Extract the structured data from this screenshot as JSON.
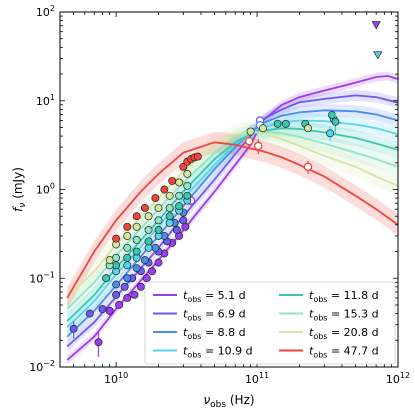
{
  "chart_data": {
    "type": "scatter",
    "x_axis": {
      "label_prefix": "ν",
      "label_sub": "obs",
      "label_suffix": " (Hz)",
      "scale": "log",
      "range": [
        4000000000,
        1000000000000
      ],
      "major_ticks": [
        {
          "value": 10000000000,
          "base": "10",
          "exp": "10"
        },
        {
          "value": 100000000000,
          "base": "10",
          "exp": "11"
        },
        {
          "value": 1000000000000,
          "base": "10",
          "exp": "12"
        }
      ]
    },
    "y_axis": {
      "label_prefix": "f",
      "label_sub": "ν",
      "label_suffix": " (mJy)",
      "scale": "log",
      "range": [
        0.01,
        100
      ],
      "major_ticks": [
        {
          "value": 0.01,
          "base": "10",
          "exp": "−2"
        },
        {
          "value": 0.1,
          "base": "10",
          "exp": "−1"
        },
        {
          "value": 1,
          "base": "10",
          "exp": "0"
        },
        {
          "value": 10,
          "base": "10",
          "exp": "1"
        },
        {
          "value": 100,
          "base": "10",
          "exp": "2"
        }
      ]
    },
    "legend": {
      "placement": "lower-right",
      "columns": 2
    },
    "series": [
      {
        "name": "5.1 d",
        "color": "#9b3df0",
        "model": [
          [
            4500000000.0,
            0.012
          ],
          [
            7000000000.0,
            0.022
          ],
          [
            10000000000.0,
            0.045
          ],
          [
            20000000000.0,
            0.16
          ],
          [
            30000000000.0,
            0.35
          ],
          [
            50000000000.0,
            0.95
          ],
          [
            70000000000.0,
            1.9
          ],
          [
            90000000000.0,
            3.2
          ],
          [
            110000000000.0,
            6.0
          ],
          [
            150000000000.0,
            9.0
          ],
          [
            200000000000.0,
            11
          ],
          [
            300000000000.0,
            13
          ],
          [
            500000000000.0,
            16
          ],
          [
            700000000000.0,
            18.5
          ],
          [
            850000000000.0,
            19
          ],
          [
            1000000000000.0,
            17.5
          ]
        ],
        "band": 0.05,
        "points": [
          [
            7500000000.0,
            0.019,
            0.006
          ],
          [
            9000000000.0,
            0.043,
            0.005
          ],
          [
            10500000000.0,
            0.05,
            0
          ],
          [
            12000000000.0,
            0.06,
            0
          ],
          [
            13500000000.0,
            0.065,
            0
          ],
          [
            15000000000.0,
            0.08,
            0
          ],
          [
            16500000000.0,
            0.1,
            0
          ],
          [
            18000000000.0,
            0.12,
            0
          ],
          [
            20000000000.0,
            0.15,
            0
          ],
          [
            22000000000.0,
            0.19,
            0
          ],
          [
            25000000000.0,
            0.25,
            0
          ],
          [
            28000000000.0,
            0.3,
            0
          ],
          [
            31000000000.0,
            0.38,
            0
          ]
        ],
        "open_points": [
          [
            34000000000.0,
            0.75,
            0.1
          ]
        ],
        "upper_limits": [
          [
            700000000000.0,
            72
          ]
        ]
      },
      {
        "name": "6.9 d",
        "color": "#6a5cf2",
        "model": [
          [
            4500000000.0,
            0.017
          ],
          [
            7000000000.0,
            0.032
          ],
          [
            10000000000.0,
            0.062
          ],
          [
            20000000000.0,
            0.22
          ],
          [
            30000000000.0,
            0.5
          ],
          [
            50000000000.0,
            1.3
          ],
          [
            70000000000.0,
            2.5
          ],
          [
            90000000000.0,
            4.0
          ],
          [
            110000000000.0,
            6.2
          ],
          [
            150000000000.0,
            8.0
          ],
          [
            200000000000.0,
            9.6
          ],
          [
            300000000000.0,
            10.5
          ],
          [
            500000000000.0,
            11.5
          ],
          [
            700000000000.0,
            11.0
          ],
          [
            1000000000000.0,
            9.5
          ]
        ],
        "band": 0.06,
        "points": [
          [
            5000000000.0,
            0.027,
            0.006
          ],
          [
            6500000000.0,
            0.04,
            0
          ],
          [
            8000000000.0,
            0.045,
            0.005
          ],
          [
            10000000000.0,
            0.065,
            0
          ],
          [
            11500000000.0,
            0.08,
            0
          ],
          [
            13000000000.0,
            0.1,
            0
          ],
          [
            15000000000.0,
            0.12,
            0
          ],
          [
            17000000000.0,
            0.15,
            0
          ],
          [
            20000000000.0,
            0.2,
            0
          ],
          [
            23000000000.0,
            0.26,
            0
          ],
          [
            27000000000.0,
            0.35,
            0
          ],
          [
            30000000000.0,
            0.45,
            0
          ]
        ],
        "open_points": [
          [
            105000000000.0,
            6.0,
            0.6
          ]
        ],
        "upper_limits": []
      },
      {
        "name": "8.8 d",
        "color": "#4b8cf0",
        "model": [
          [
            4500000000.0,
            0.022
          ],
          [
            7000000000.0,
            0.043
          ],
          [
            10000000000.0,
            0.083
          ],
          [
            20000000000.0,
            0.3
          ],
          [
            30000000000.0,
            0.65
          ],
          [
            50000000000.0,
            1.7
          ],
          [
            70000000000.0,
            3.0
          ],
          [
            90000000000.0,
            4.5
          ],
          [
            110000000000.0,
            5.6
          ],
          [
            150000000000.0,
            6.8
          ],
          [
            200000000000.0,
            7.4
          ],
          [
            300000000000.0,
            7.8
          ],
          [
            500000000000.0,
            7.6
          ],
          [
            700000000000.0,
            7.0
          ],
          [
            1000000000000.0,
            6.0
          ]
        ],
        "band": 0.07,
        "points": [
          [
            10000000000.0,
            0.085,
            0
          ],
          [
            12000000000.0,
            0.1,
            0
          ],
          [
            14000000000.0,
            0.13,
            0
          ],
          [
            16000000000.0,
            0.16,
            0
          ],
          [
            19000000000.0,
            0.22,
            0
          ],
          [
            22000000000.0,
            0.3,
            0
          ],
          [
            26000000000.0,
            0.42,
            0
          ],
          [
            30000000000.0,
            0.55,
            0
          ]
        ],
        "open_points": [
          [
            105000000000.0,
            5.3,
            0.5
          ]
        ],
        "upper_limits": []
      },
      {
        "name": "10.9 d",
        "color": "#56d6ee",
        "model": [
          [
            4500000000.0,
            0.028
          ],
          [
            7000000000.0,
            0.055
          ],
          [
            10000000000.0,
            0.11
          ],
          [
            20000000000.0,
            0.38
          ],
          [
            30000000000.0,
            0.8
          ],
          [
            50000000000.0,
            1.9
          ],
          [
            70000000000.0,
            3.2
          ],
          [
            90000000000.0,
            4.4
          ],
          [
            110000000000.0,
            5.0
          ],
          [
            150000000000.0,
            5.7
          ],
          [
            200000000000.0,
            6.0
          ],
          [
            300000000000.0,
            5.9
          ],
          [
            500000000000.0,
            5.4
          ],
          [
            700000000000.0,
            4.9
          ],
          [
            1000000000000.0,
            4.2
          ]
        ],
        "band": 0.08,
        "points": [
          [
            10000000000.0,
            0.12,
            0
          ],
          [
            12000000000.0,
            0.14,
            0
          ],
          [
            14000000000.0,
            0.17,
            0
          ],
          [
            17000000000.0,
            0.22,
            0
          ],
          [
            20000000000.0,
            0.3,
            0
          ],
          [
            24000000000.0,
            0.42,
            0
          ],
          [
            28000000000.0,
            0.58,
            0
          ],
          [
            32000000000.0,
            0.75,
            0
          ],
          [
            330000000000.0,
            4.3,
            0.8
          ],
          [
            350000000000.0,
            6.2,
            0
          ]
        ],
        "open_points": [],
        "upper_limits": [
          [
            720000000000.0,
            33
          ]
        ]
      },
      {
        "name": "11.8 d",
        "color": "#38c7b0",
        "model": [
          [
            4500000000.0,
            0.033
          ],
          [
            7000000000.0,
            0.065
          ],
          [
            10000000000.0,
            0.13
          ],
          [
            20000000000.0,
            0.45
          ],
          [
            30000000000.0,
            0.95
          ],
          [
            50000000000.0,
            2.2
          ],
          [
            70000000000.0,
            3.4
          ],
          [
            90000000000.0,
            4.2
          ],
          [
            110000000000.0,
            4.6
          ],
          [
            150000000000.0,
            4.9
          ],
          [
            200000000000.0,
            4.8
          ],
          [
            300000000000.0,
            4.4
          ],
          [
            500000000000.0,
            3.8
          ],
          [
            700000000000.0,
            3.3
          ],
          [
            1000000000000.0,
            2.8
          ]
        ],
        "band": 0.09,
        "points": [
          [
            8500000000.0,
            0.1,
            0
          ],
          [
            10000000000.0,
            0.14,
            0
          ],
          [
            12000000000.0,
            0.17,
            0
          ],
          [
            14000000000.0,
            0.2,
            0
          ],
          [
            17000000000.0,
            0.26,
            0
          ],
          [
            20000000000.0,
            0.35,
            0
          ],
          [
            24000000000.0,
            0.5,
            0
          ],
          [
            28000000000.0,
            0.65,
            0
          ],
          [
            32000000000.0,
            0.85,
            0
          ],
          [
            140000000000.0,
            5.5,
            0
          ],
          [
            160000000000.0,
            5.5,
            0
          ],
          [
            220000000000.0,
            5.5,
            0
          ],
          [
            340000000000.0,
            6.9,
            0
          ],
          [
            360000000000.0,
            5.8,
            1.5
          ]
        ],
        "open_points": [],
        "upper_limits": []
      },
      {
        "name": "15.3 d",
        "color": "#8fe6c3",
        "model": [
          [
            4500000000.0,
            0.045
          ],
          [
            7000000000.0,
            0.09
          ],
          [
            10000000000.0,
            0.18
          ],
          [
            20000000000.0,
            0.6
          ],
          [
            30000000000.0,
            1.2
          ],
          [
            50000000000.0,
            2.6
          ],
          [
            70000000000.0,
            3.8
          ],
          [
            90000000000.0,
            4.3
          ],
          [
            110000000000.0,
            4.5
          ],
          [
            150000000000.0,
            4.3
          ],
          [
            200000000000.0,
            3.9
          ],
          [
            300000000000.0,
            3.3
          ],
          [
            500000000000.0,
            2.6
          ],
          [
            700000000000.0,
            2.2
          ],
          [
            1000000000000.0,
            1.8
          ]
        ],
        "band": 0.1,
        "points": [
          [
            9000000000.0,
            0.14,
            0
          ],
          [
            10000000000.0,
            0.17,
            0
          ],
          [
            12000000000.0,
            0.22,
            0
          ],
          [
            14000000000.0,
            0.27,
            0
          ],
          [
            17000000000.0,
            0.35,
            0
          ],
          [
            20000000000.0,
            0.45,
            0
          ],
          [
            24000000000.0,
            0.62,
            0
          ],
          [
            28000000000.0,
            0.85,
            0
          ],
          [
            32000000000.0,
            1.1,
            0
          ]
        ],
        "open_points": [],
        "upper_limits": []
      },
      {
        "name": "20.8 d",
        "color": "#d5e6a0",
        "model": [
          [
            4500000000.0,
            0.06
          ],
          [
            7000000000.0,
            0.12
          ],
          [
            10000000000.0,
            0.24
          ],
          [
            20000000000.0,
            0.8
          ],
          [
            30000000000.0,
            1.6
          ],
          [
            50000000000.0,
            3.2
          ],
          [
            70000000000.0,
            4.2
          ],
          [
            90000000000.0,
            4.5
          ],
          [
            110000000000.0,
            4.3
          ],
          [
            150000000000.0,
            3.7
          ],
          [
            200000000000.0,
            3.1
          ],
          [
            300000000000.0,
            2.4
          ],
          [
            500000000000.0,
            1.8
          ],
          [
            700000000000.0,
            1.4
          ],
          [
            1000000000000.0,
            1.1
          ]
        ],
        "band": 0.11,
        "points": [
          [
            9000000000.0,
            0.16,
            0
          ],
          [
            10000000000.0,
            0.24,
            0
          ],
          [
            12000000000.0,
            0.3,
            0
          ],
          [
            14000000000.0,
            0.38,
            0
          ],
          [
            17000000000.0,
            0.5,
            0
          ],
          [
            20000000000.0,
            0.62,
            0
          ],
          [
            24000000000.0,
            0.85,
            0
          ],
          [
            28000000000.0,
            1.2,
            0
          ],
          [
            32000000000.0,
            1.5,
            0
          ],
          [
            90000000000.0,
            4.5,
            0
          ],
          [
            110000000000.0,
            4.9,
            0
          ],
          [
            230000000000.0,
            4.9,
            0
          ]
        ],
        "open_points": [],
        "upper_limits": []
      },
      {
        "name": "47.7 d",
        "color": "#f0453b",
        "model": [
          [
            4500000000.0,
            0.06
          ],
          [
            7000000000.0,
            0.2
          ],
          [
            10000000000.0,
            0.45
          ],
          [
            15000000000.0,
            0.95
          ],
          [
            20000000000.0,
            1.5
          ],
          [
            30000000000.0,
            2.6
          ],
          [
            50000000000.0,
            3.4
          ],
          [
            70000000000.0,
            3.2
          ],
          [
            90000000000.0,
            2.9
          ],
          [
            110000000000.0,
            2.7
          ],
          [
            150000000000.0,
            2.3
          ],
          [
            200000000000.0,
            1.9
          ],
          [
            300000000000.0,
            1.4
          ],
          [
            500000000000.0,
            0.85
          ],
          [
            700000000000.0,
            0.6
          ],
          [
            1000000000000.0,
            0.4
          ]
        ],
        "band": 0.12,
        "points": [
          [
            10000000000.0,
            0.28,
            0
          ],
          [
            12000000000.0,
            0.38,
            0
          ],
          [
            14000000000.0,
            0.5,
            0
          ],
          [
            16000000000.0,
            0.62,
            0
          ],
          [
            19000000000.0,
            0.8,
            0
          ],
          [
            22000000000.0,
            1.0,
            0
          ],
          [
            25000000000.0,
            1.25,
            0
          ],
          [
            30000000000.0,
            1.8,
            0
          ],
          [
            32000000000.0,
            2.05,
            0
          ],
          [
            34000000000.0,
            2.2,
            0
          ],
          [
            36000000000.0,
            2.3,
            0
          ],
          [
            38000000000.0,
            2.35,
            0
          ]
        ],
        "open_points": [
          [
            88000000000.0,
            3.5,
            0.5
          ],
          [
            102000000000.0,
            3.1,
            0.6
          ],
          [
            230000000000.0,
            1.8,
            0.3
          ]
        ],
        "upper_limits": []
      }
    ]
  },
  "legend_labels": {
    "t_prefix": "t",
    "t_sub": "obs",
    "entries": [
      "5.1 d",
      "6.9 d",
      "8.8 d",
      "10.9 d",
      "11.8 d",
      "15.3 d",
      "20.8 d",
      "47.7 d"
    ]
  }
}
